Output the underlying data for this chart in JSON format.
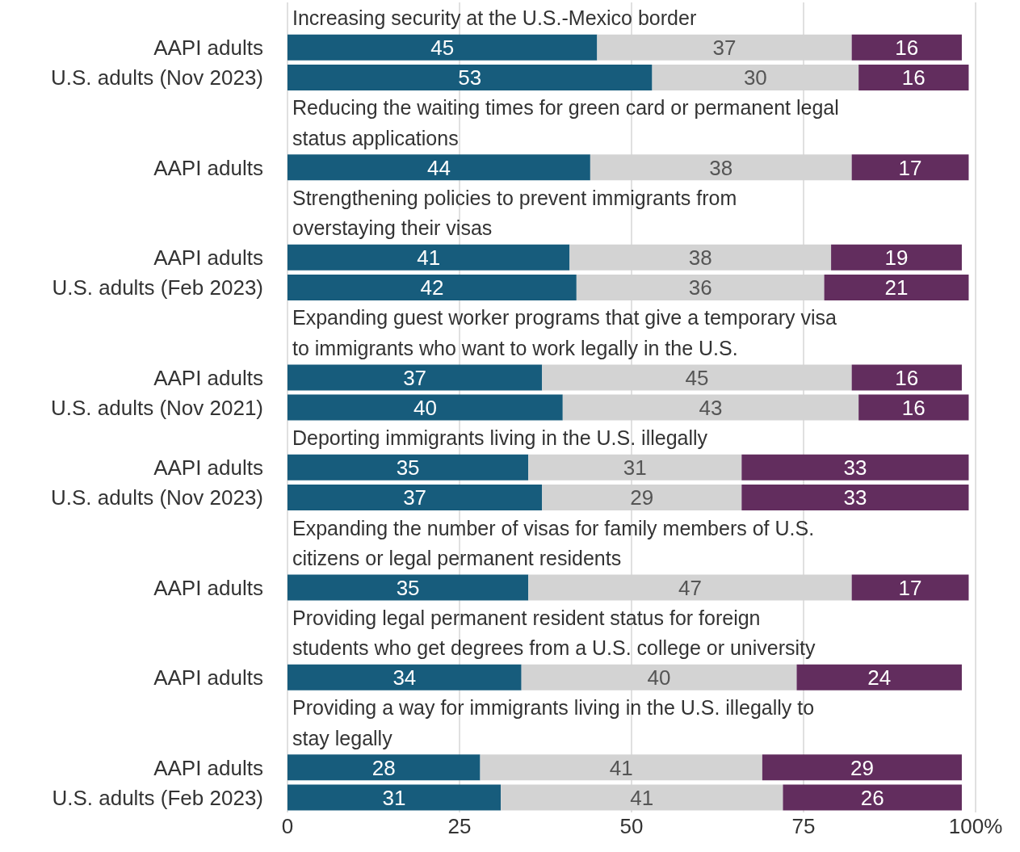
{
  "chart_data": {
    "type": "bar",
    "orientation": "horizontal",
    "stacked": true,
    "data_labels": true,
    "grid": "x",
    "legend": false,
    "categories": [
      null,
      "AAPI adults",
      "U.S. adults (Nov 2023)",
      null,
      null,
      "AAPI adults",
      null,
      null,
      "AAPI adults",
      "U.S. adults (Feb 2023)",
      null,
      null,
      "AAPI adults",
      "U.S. adults (Nov 2021)",
      null,
      "AAPI adults",
      "U.S. adults (Nov 2023)",
      null,
      null,
      "AAPI adults",
      null,
      null,
      "AAPI adults",
      null,
      null,
      "AAPI adults",
      "U.S. adults (Feb 2023)"
    ],
    "series": [
      {
        "color": "#175c7c",
        "values": [
          null,
          45,
          53,
          null,
          null,
          44,
          null,
          null,
          41,
          42,
          null,
          null,
          37,
          40,
          null,
          35,
          37,
          null,
          null,
          35,
          null,
          null,
          34,
          null,
          null,
          28,
          31
        ]
      },
      {
        "color": "#d3d3d3",
        "values": [
          null,
          37,
          30,
          null,
          null,
          38,
          null,
          null,
          38,
          36,
          null,
          null,
          45,
          43,
          null,
          31,
          29,
          null,
          null,
          47,
          null,
          null,
          40,
          null,
          null,
          41,
          41
        ]
      },
      {
        "color": "#622d5e",
        "values": [
          null,
          16,
          16,
          null,
          null,
          17,
          null,
          null,
          19,
          21,
          null,
          null,
          16,
          16,
          null,
          33,
          33,
          null,
          null,
          17,
          null,
          null,
          24,
          null,
          null,
          29,
          26
        ]
      }
    ],
    "xlim": [
      0,
      100
    ],
    "xticks": [
      0,
      25,
      50,
      75,
      {
        "value": 100,
        "label": "100%"
      }
    ],
    "annotations": [
      "Increasing security at the U.S.-Mexico border",
      "Reducing the waiting times for green card or permanent legal\nstatus applications",
      "Strengthening policies to prevent immigrants from\noverstaying their visas",
      "Expanding guest worker programs that give a temporary visa\nto immigrants who want to work legally in the U.S.",
      "Deporting immigrants living in the U.S. illegally",
      "Expanding the number of visas for family members of U.S.\ncitizens or legal permanent residents",
      "Providing legal permanent resident status for foreign\nstudents who get degrees from a U.S. college or university",
      "Providing a way for immigrants living in the U.S. illegally to\nstay legally"
    ]
  }
}
